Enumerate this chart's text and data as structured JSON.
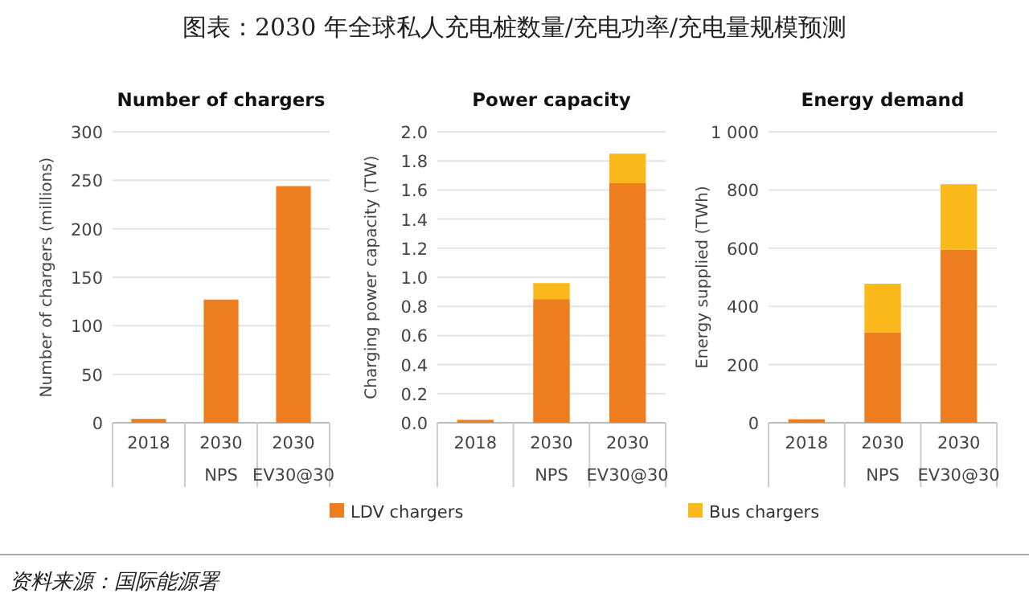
{
  "chart_data": [
    {
      "type": "bar",
      "title": "Number of chargers",
      "ylabel": "Number of chargers (millions)",
      "categories": [
        "2018",
        "2030\nNPS",
        "2030\nEV30@30"
      ],
      "series": [
        {
          "color": "#ed7d1f",
          "values": [
            4,
            127,
            244
          ]
        }
      ],
      "ylim": [
        0,
        300
      ],
      "yticks": [
        0,
        50,
        100,
        150,
        200,
        250,
        300
      ],
      "grid": "y",
      "annotations": [
        "图表：2030 年全球私人充电桩数量/充电功率/充电量规模预测",
        "资料来源：国际能源署"
      ]
    },
    {
      "type": "bar",
      "title": "Power capacity",
      "ylabel": "Charging power capacity (TW)",
      "categories": [
        "2018",
        "2030\nNPS",
        "2030\nEV30@30"
      ],
      "stacked": true,
      "series": [
        {
          "name": "LDV chargers",
          "color": "#ed7d1f",
          "values": [
            0.02,
            0.85,
            1.65
          ]
        },
        {
          "name": "Bus chargers",
          "color": "#fbb91c",
          "values": [
            null,
            0.11,
            0.2
          ]
        }
      ],
      "ylim": [
        0,
        2
      ],
      "yticks": [
        {
          "value": 0,
          "label": "0.0"
        },
        0.2,
        0.4,
        0.6,
        0.8,
        {
          "value": 1,
          "label": "1.0"
        },
        1.2,
        1.4,
        1.6,
        1.8,
        {
          "value": 2,
          "label": "2.0"
        }
      ],
      "grid": "y",
      "legend": "bottom"
    },
    {
      "type": "bar",
      "title": "Energy demand",
      "ylabel": "Energy supplied (TWh)",
      "categories": [
        "2018",
        "2030\nNPS",
        "2030\nEV30@30"
      ],
      "stacked": true,
      "series": [
        {
          "color": "#ed7d1f",
          "values": [
            12,
            310,
            595
          ]
        },
        {
          "color": "#fbb91c",
          "values": [
            null,
            168,
            225
          ]
        }
      ],
      "ylim": [
        0,
        1000
      ],
      "yticks": [
        0,
        200,
        400,
        600,
        800,
        {
          "value": 1000,
          "label": "1 000"
        }
      ],
      "grid": "y"
    }
  ]
}
